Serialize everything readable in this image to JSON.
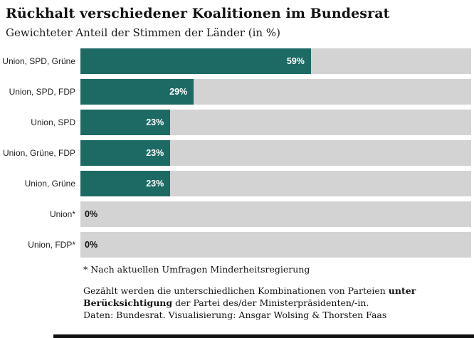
{
  "header": {
    "title": "Rückhalt verschiedener Koalitionen im Bundesrat",
    "subtitle": "Gewichteter Anteil der Stimmen der Länder (in %)"
  },
  "chart_data": {
    "type": "bar",
    "orientation": "horizontal",
    "title": "Rückhalt verschiedener Koalitionen im Bundesrat",
    "subtitle": "Gewichteter Anteil der Stimmen der Länder (in %)",
    "categories": [
      "Union, SPD, Grüne",
      "Union, SPD, FDP",
      "Union, SPD",
      "Union, Grüne, FDP",
      "Union, Grüne",
      "Union*",
      "Union, FDP*"
    ],
    "values": [
      59,
      29,
      23,
      23,
      23,
      0,
      0
    ],
    "value_labels": [
      "59%",
      "29%",
      "23%",
      "23%",
      "23%",
      "0%",
      "0%"
    ],
    "xlim": [
      0,
      100
    ],
    "bar_color": "#1d6a64",
    "track_color": "#d3d3d3",
    "grid": false,
    "legend": "none"
  },
  "footnotes": {
    "asterisk_note": "* Nach aktuellen Umfragen Minderheitsregierung",
    "method_prefix": "Gezählt werden die unterschiedlichen Kombinationen von Parteien ",
    "method_bold": "unter Berücksichtigung",
    "method_suffix": " der Partei des/der Ministerpräsidenten/-in.",
    "credits": "Daten: Bundesrat. Visualisierung: Ansgar Wolsing & Thorsten Faas"
  }
}
